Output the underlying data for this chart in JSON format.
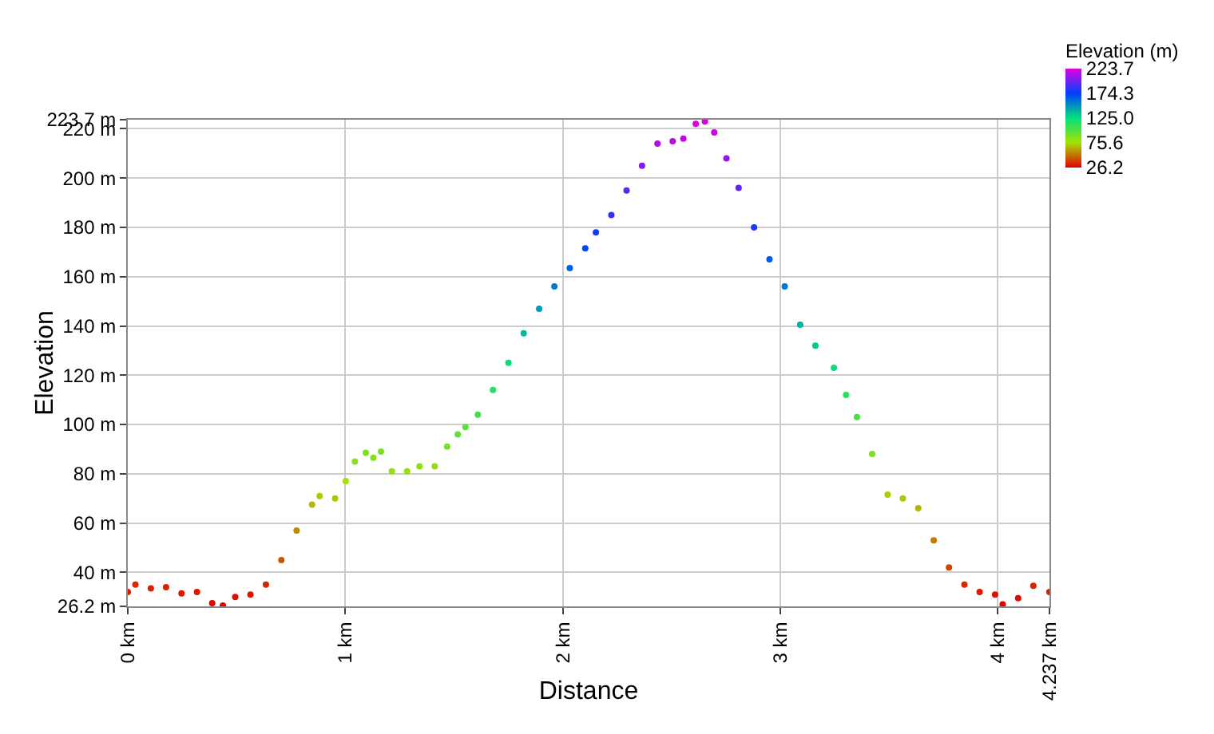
{
  "chart_data": {
    "type": "scatter",
    "marker": "circle",
    "xlabel": "Distance",
    "ylabel": "Elevation",
    "clabel": "Elevation (m)",
    "grid": true,
    "xlim": [
      0,
      4.237
    ],
    "xticks": [
      {
        "value": 0,
        "label": "0 km"
      },
      {
        "value": 1,
        "label": "1 km"
      },
      {
        "value": 2,
        "label": "2 km"
      },
      {
        "value": 3,
        "label": "3 km"
      },
      {
        "value": 4,
        "label": "4 km"
      },
      {
        "value": 4.237,
        "label": "4.237 km"
      }
    ],
    "ylim": [
      26.2,
      223.7
    ],
    "yticks": [
      {
        "value": 26.2,
        "label": "26.2 m"
      },
      {
        "value": 40,
        "label": "40 m"
      },
      {
        "value": 60,
        "label": "60 m"
      },
      {
        "value": 80,
        "label": "80 m"
      },
      {
        "value": 100,
        "label": "100 m"
      },
      {
        "value": 120,
        "label": "120 m"
      },
      {
        "value": 140,
        "label": "140 m"
      },
      {
        "value": 160,
        "label": "160 m"
      },
      {
        "value": 180,
        "label": "180 m"
      },
      {
        "value": 200,
        "label": "200 m"
      },
      {
        "value": 220,
        "label": "220 m"
      },
      {
        "value": 223.7,
        "label": "223.7 m"
      }
    ],
    "clim": [
      26.2,
      223.7
    ],
    "cticks": [
      26.2,
      75.6,
      {
        "value": 125,
        "label": "125.0"
      },
      174.3,
      223.7
    ],
    "x": [
      0,
      0.035,
      0.106,
      0.176,
      0.247,
      0.318,
      0.388,
      0.437,
      0.494,
      0.564,
      0.635,
      0.706,
      0.776,
      0.847,
      0.882,
      0.953,
      1.002,
      1.044,
      1.094,
      1.129,
      1.164,
      1.214,
      1.284,
      1.341,
      1.411,
      1.468,
      1.517,
      1.552,
      1.609,
      1.679,
      1.75,
      1.82,
      1.891,
      1.961,
      2.032,
      2.103,
      2.152,
      2.223,
      2.293,
      2.364,
      2.435,
      2.505,
      2.554,
      2.611,
      2.653,
      2.696,
      2.752,
      2.808,
      2.879,
      2.95,
      3.02,
      3.091,
      3.161,
      3.246,
      3.302,
      3.352,
      3.422,
      3.493,
      3.563,
      3.634,
      3.705,
      3.775,
      3.846,
      3.916,
      3.987,
      4.022,
      4.093,
      4.163,
      4.237
    ],
    "values": [
      32,
      35,
      33.5,
      34,
      31.5,
      32,
      27.5,
      26.5,
      30,
      31,
      35,
      45,
      57,
      67.5,
      71,
      70,
      77,
      85,
      88.5,
      86.5,
      89,
      81,
      81,
      83,
      83,
      91,
      96,
      99,
      104,
      114,
      125,
      137,
      147,
      156,
      163.5,
      171.5,
      178,
      185,
      195,
      205,
      214,
      215,
      216,
      222,
      223,
      218.5,
      208,
      196,
      180,
      167,
      156,
      140.5,
      132,
      123,
      112,
      103,
      88,
      71.5,
      70,
      66,
      53,
      42,
      35,
      32,
      31,
      27,
      29.5,
      34.5,
      32
    ]
  }
}
